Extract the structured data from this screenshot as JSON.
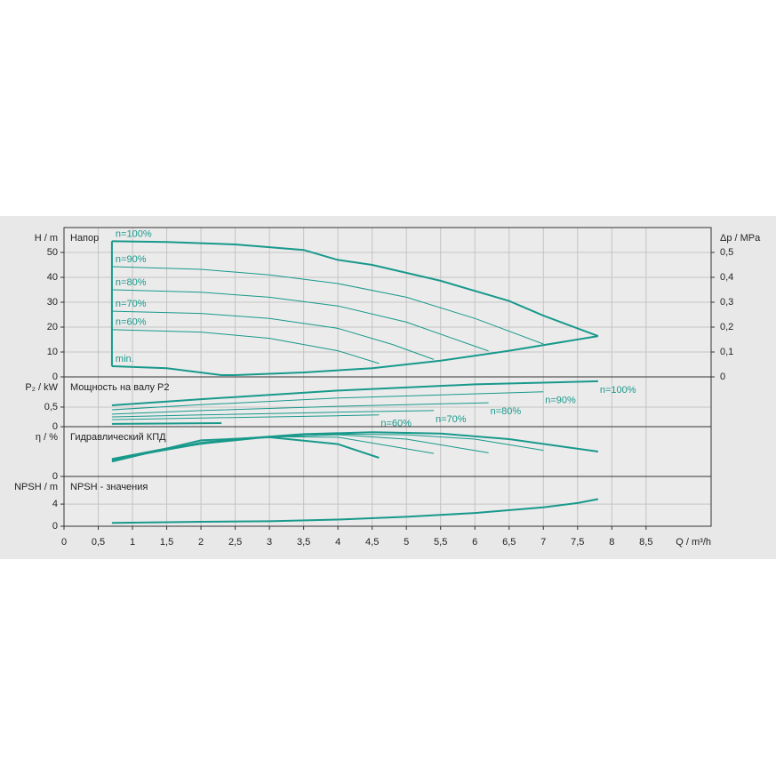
{
  "chart_data": [
    {
      "type": "line",
      "title": "Напор",
      "ylabel": "H / m",
      "y2label": "Δp / MPa",
      "ylim": [
        0,
        60
      ],
      "yticks": [
        0,
        10,
        20,
        30,
        40,
        50
      ],
      "y2lim": [
        0,
        0.6
      ],
      "y2ticks": [
        0,
        {
          "value": 0.1,
          "label": "0,1"
        },
        {
          "value": 0.2,
          "label": "0,2"
        },
        {
          "value": 0.3,
          "label": "0,3"
        },
        {
          "value": 0.4,
          "label": "0,4"
        },
        {
          "value": 0.5,
          "label": "0,5"
        }
      ],
      "grid": true,
      "label_position": "start",
      "series": [
        {
          "name": "n=100%",
          "color": "#18998b",
          "x": [
            0.7,
            1.5,
            2.5,
            3.5,
            4.0,
            4.5,
            5.5,
            6.5,
            7.0,
            7.8
          ],
          "values": [
            54.5,
            54.2,
            53.2,
            51,
            47,
            45,
            38.6,
            30.5,
            24.6,
            16.4
          ]
        },
        {
          "name": "n=90%",
          "color": "#18998b",
          "x": [
            0.7,
            2,
            3,
            4,
            5,
            6,
            7
          ],
          "values": [
            44.3,
            43.2,
            41,
            37.5,
            32,
            23.5,
            13.2
          ]
        },
        {
          "name": "n=80%",
          "color": "#18998b",
          "x": [
            0.7,
            2,
            3,
            4,
            5,
            6.2
          ],
          "values": [
            35,
            34,
            32,
            28.5,
            22,
            10.4
          ]
        },
        {
          "name": "n=70%",
          "color": "#18998b",
          "x": [
            0.7,
            2,
            3,
            4,
            4.8,
            5.4
          ],
          "values": [
            26.4,
            25.5,
            23.5,
            19.5,
            13,
            7
          ]
        },
        {
          "name": "n=60%",
          "color": "#18998b",
          "x": [
            0.7,
            2,
            3,
            4,
            4.6
          ],
          "values": [
            19,
            18,
            15.5,
            10.5,
            5.4
          ]
        },
        {
          "name": "min.",
          "color": "#18998b",
          "x": [
            0.7,
            1.5,
            2.3,
            2.5,
            3.5,
            4.5,
            5.5,
            6.5,
            7.8
          ],
          "values": [
            4.3,
            3.5,
            0.7,
            0.7,
            1.8,
            3.5,
            6.5,
            10.5,
            16.4
          ]
        }
      ]
    },
    {
      "type": "line",
      "title": "Мощность на валу P2",
      "ylabel": "P₂ / kW",
      "ylim": [
        0,
        1.27
      ],
      "yticks": [
        0,
        {
          "value": 0.5,
          "label": "0,5"
        }
      ],
      "grid": true,
      "label_position": "end",
      "series": [
        {
          "name": "n=100%",
          "color": "#18998b",
          "x": [
            0.7,
            2,
            4,
            6,
            7.8
          ],
          "values": [
            0.545,
            0.7,
            0.92,
            1.08,
            1.16
          ]
        },
        {
          "name": "n=90%",
          "color": "#18998b",
          "x": [
            0.7,
            2,
            4,
            7
          ],
          "values": [
            0.43,
            0.56,
            0.73,
            0.89
          ]
        },
        {
          "name": "n=80%",
          "color": "#18998b",
          "x": [
            0.7,
            2,
            4,
            6.2
          ],
          "values": [
            0.32,
            0.41,
            0.52,
            0.61
          ]
        },
        {
          "name": "n=70%",
          "color": "#18998b",
          "x": [
            0.7,
            2,
            4,
            5.4
          ],
          "values": [
            0.25,
            0.3,
            0.37,
            0.41
          ]
        },
        {
          "name": "n=60%",
          "color": "#18998b",
          "x": [
            0.7,
            2,
            4,
            4.6
          ],
          "values": [
            0.18,
            0.22,
            0.28,
            0.3
          ]
        },
        {
          "name": "min.",
          "color": "#18998b",
          "x": [
            0.7,
            2.3
          ],
          "values": [
            0.07,
            0.09
          ]
        }
      ]
    },
    {
      "type": "line",
      "title": "Гидравлический КПД",
      "ylabel": "η / %",
      "ylim": [
        0,
        80
      ],
      "yticks": [
        0
      ],
      "grid": true,
      "series": [
        {
          "name": "n=100%",
          "color": "#18998b",
          "x": [
            0.7,
            1.5,
            2.5,
            3.5,
            4.5,
            5.5,
            6.5,
            7.8
          ],
          "values": [
            28,
            45,
            60,
            68,
            71,
            69,
            60,
            40
          ]
        },
        {
          "name": "n=90%",
          "color": "#18998b",
          "x": [
            0.7,
            2,
            3,
            4,
            5,
            6,
            7
          ],
          "values": [
            27,
            52,
            63,
            68,
            67,
            60,
            42
          ]
        },
        {
          "name": "n=80%",
          "color": "#18998b",
          "x": [
            0.7,
            2,
            3,
            4,
            5,
            6.2
          ],
          "values": [
            26,
            53,
            64,
            67,
            60,
            38
          ]
        },
        {
          "name": "n=70%",
          "color": "#18998b",
          "x": [
            0.7,
            2,
            3,
            4,
            5.4
          ],
          "values": [
            25,
            55,
            64,
            63,
            37
          ]
        },
        {
          "name": "n=60%",
          "color": "#18998b",
          "x": [
            0.7,
            2,
            3,
            4,
            4.6
          ],
          "values": [
            24,
            58,
            63,
            52,
            30
          ]
        }
      ]
    },
    {
      "type": "line",
      "title": "NPSH - значения",
      "ylabel": "NPSH / m",
      "xlabel": "Q / m³/h",
      "ylim": [
        0,
        9
      ],
      "yticks": [
        0,
        4
      ],
      "grid": true,
      "xlim": [
        0,
        9.45
      ],
      "xticks": [
        0,
        {
          "value": 0.5,
          "label": "0,5"
        },
        1,
        {
          "value": 1.5,
          "label": "1,5"
        },
        2,
        {
          "value": 2.5,
          "label": "2,5"
        },
        3,
        {
          "value": 3.5,
          "label": "3,5"
        },
        4,
        {
          "value": 4.5,
          "label": "4,5"
        },
        5,
        {
          "value": 5.5,
          "label": "5,5"
        },
        6,
        {
          "value": 6.5,
          "label": "6,5"
        },
        7,
        {
          "value": 7.5,
          "label": "7,5"
        },
        8,
        {
          "value": 8.5,
          "label": "8,5"
        }
      ],
      "series": [
        {
          "name": "NPSH",
          "color": "#18998b",
          "x": [
            0.7,
            2,
            3,
            4,
            5,
            6,
            7,
            7.5,
            7.8
          ],
          "values": [
            0.6,
            0.8,
            0.9,
            1.2,
            1.7,
            2.4,
            3.4,
            4.2,
            4.9
          ]
        }
      ]
    }
  ]
}
